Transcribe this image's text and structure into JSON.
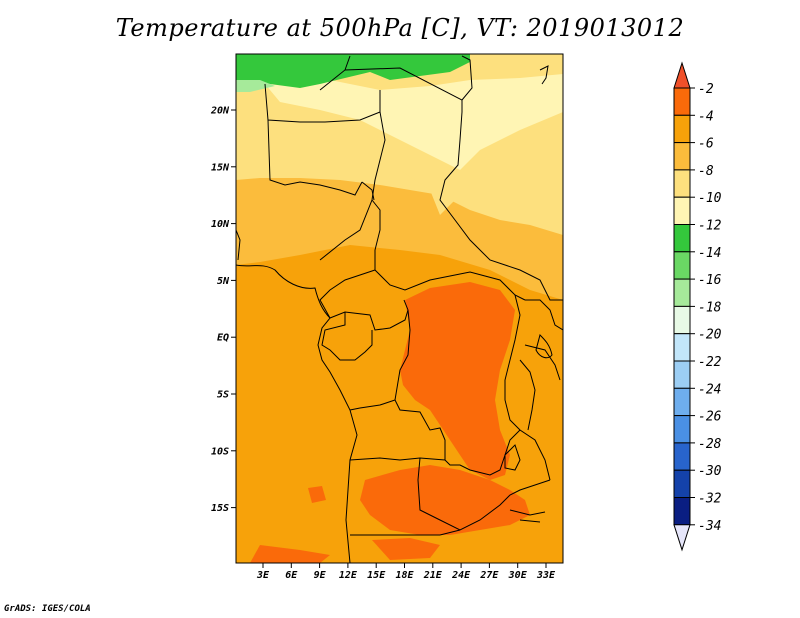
{
  "title": "Temperature at 500hPa [C], VT: 2019013012",
  "credit": "GrADS: IGES/COLA",
  "map": {
    "lat_labels": [
      "20N",
      "15N",
      "10N",
      "5N",
      "EQ",
      "5S",
      "10S",
      "15S"
    ],
    "lon_labels": [
      "3E",
      "6E",
      "9E",
      "12E",
      "15E",
      "18E",
      "21E",
      "24E",
      "27E",
      "30E",
      "33E"
    ]
  },
  "colorbar": {
    "labels": [
      "-2",
      "-4",
      "-6",
      "-8",
      "-10",
      "-12",
      "-14",
      "-16",
      "-18",
      "-20",
      "-22",
      "-24",
      "-26",
      "-28",
      "-30",
      "-32",
      "-34"
    ],
    "colors": [
      "#f0502a",
      "#fa6a0a",
      "#f7a20a",
      "#fbbc3c",
      "#fde07e",
      "#fff5b4",
      "#34c83c",
      "#6ad864",
      "#a6ea9a",
      "#e8fae6",
      "#c2e6fa",
      "#9ccef4",
      "#6eaeee",
      "#4a90e4",
      "#2864cc",
      "#1442aa",
      "#0a1e82",
      "#e6e6fa"
    ]
  }
}
